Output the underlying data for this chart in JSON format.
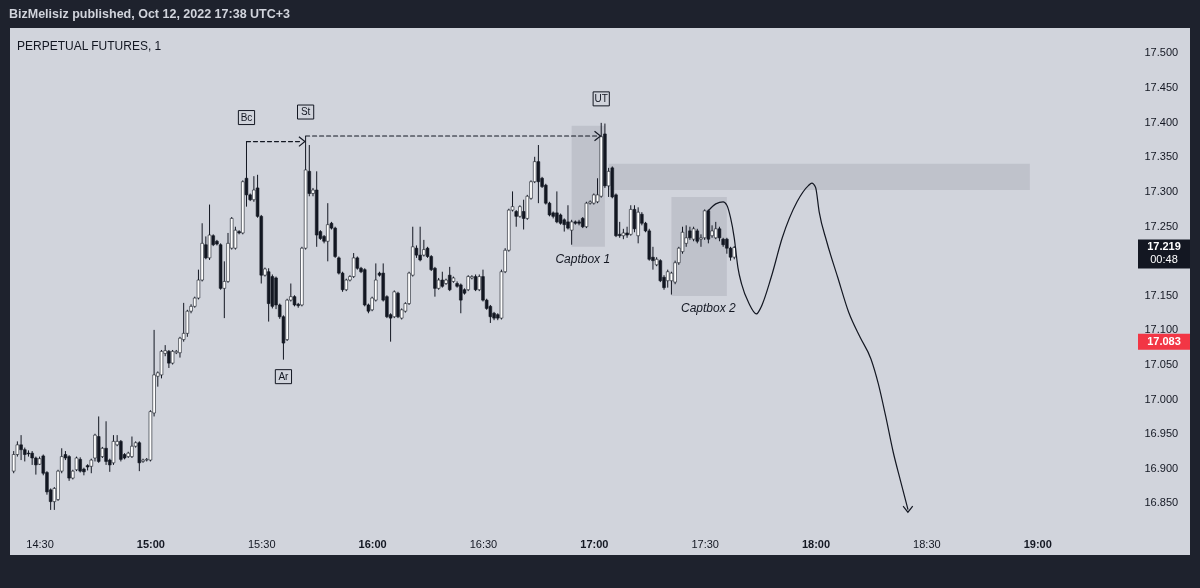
{
  "chart_data": {
    "type": "candlestick",
    "title": "PERPETUAL FUTURES, 1",
    "subtitle": "BizMelisiz published, Oct 12, 2022 17:38 UTC+3",
    "color": "#131722",
    "x": [
      "2022-10-12T14:23",
      "2022-10-12T14:24",
      "2022-10-12T14:25",
      "2022-10-12T14:26",
      "2022-10-12T14:27",
      "2022-10-12T14:28",
      "2022-10-12T14:29",
      "2022-10-12T14:30",
      "2022-10-12T14:31",
      "2022-10-12T14:32",
      "2022-10-12T14:33",
      "2022-10-12T14:34",
      "2022-10-12T14:35",
      "2022-10-12T14:36",
      "2022-10-12T14:37",
      "2022-10-12T14:38",
      "2022-10-12T14:39",
      "2022-10-12T14:40",
      "2022-10-12T14:41",
      "2022-10-12T14:42",
      "2022-10-12T14:43",
      "2022-10-12T14:44",
      "2022-10-12T14:45",
      "2022-10-12T14:46",
      "2022-10-12T14:47",
      "2022-10-12T14:48",
      "2022-10-12T14:49",
      "2022-10-12T14:50",
      "2022-10-12T14:51",
      "2022-10-12T14:52",
      "2022-10-12T14:53",
      "2022-10-12T14:54",
      "2022-10-12T14:55",
      "2022-10-12T14:56",
      "2022-10-12T14:57",
      "2022-10-12T14:58",
      "2022-10-12T14:59",
      "2022-10-12T15:00",
      "2022-10-12T15:01",
      "2022-10-12T15:02",
      "2022-10-12T15:03",
      "2022-10-12T15:04",
      "2022-10-12T15:05",
      "2022-10-12T15:06",
      "2022-10-12T15:07",
      "2022-10-12T15:08",
      "2022-10-12T15:09",
      "2022-10-12T15:10",
      "2022-10-12T15:11",
      "2022-10-12T15:12",
      "2022-10-12T15:13",
      "2022-10-12T15:14",
      "2022-10-12T15:15",
      "2022-10-12T15:16",
      "2022-10-12T15:17",
      "2022-10-12T15:18",
      "2022-10-12T15:19",
      "2022-10-12T15:20",
      "2022-10-12T15:21",
      "2022-10-12T15:22",
      "2022-10-12T15:23",
      "2022-10-12T15:24",
      "2022-10-12T15:25",
      "2022-10-12T15:26",
      "2022-10-12T15:27",
      "2022-10-12T15:28",
      "2022-10-12T15:29",
      "2022-10-12T15:30",
      "2022-10-12T15:31",
      "2022-10-12T15:32",
      "2022-10-12T15:33",
      "2022-10-12T15:34",
      "2022-10-12T15:35",
      "2022-10-12T15:36",
      "2022-10-12T15:37",
      "2022-10-12T15:38",
      "2022-10-12T15:39",
      "2022-10-12T15:40",
      "2022-10-12T15:41",
      "2022-10-12T15:42",
      "2022-10-12T15:43",
      "2022-10-12T15:44",
      "2022-10-12T15:45",
      "2022-10-12T15:46",
      "2022-10-12T15:47",
      "2022-10-12T15:48",
      "2022-10-12T15:49",
      "2022-10-12T15:50",
      "2022-10-12T15:51",
      "2022-10-12T15:52",
      "2022-10-12T15:53",
      "2022-10-12T15:54",
      "2022-10-12T15:55",
      "2022-10-12T15:56",
      "2022-10-12T15:57",
      "2022-10-12T15:58",
      "2022-10-12T15:59",
      "2022-10-12T16:00",
      "2022-10-12T16:01",
      "2022-10-12T16:02",
      "2022-10-12T16:03",
      "2022-10-12T16:04",
      "2022-10-12T16:05",
      "2022-10-12T16:06",
      "2022-10-12T16:07",
      "2022-10-12T16:08",
      "2022-10-12T16:09",
      "2022-10-12T16:10",
      "2022-10-12T16:11",
      "2022-10-12T16:12",
      "2022-10-12T16:13",
      "2022-10-12T16:14",
      "2022-10-12T16:15",
      "2022-10-12T16:16",
      "2022-10-12T16:17",
      "2022-10-12T16:18",
      "2022-10-12T16:19",
      "2022-10-12T16:20",
      "2022-10-12T16:21",
      "2022-10-12T16:22",
      "2022-10-12T16:23",
      "2022-10-12T16:24",
      "2022-10-12T16:25",
      "2022-10-12T16:26",
      "2022-10-12T16:27",
      "2022-10-12T16:28",
      "2022-10-12T16:29",
      "2022-10-12T16:30",
      "2022-10-12T16:31",
      "2022-10-12T16:32",
      "2022-10-12T16:33",
      "2022-10-12T16:34",
      "2022-10-12T16:35",
      "2022-10-12T16:36",
      "2022-10-12T16:37",
      "2022-10-12T16:38",
      "2022-10-12T16:39",
      "2022-10-12T16:40",
      "2022-10-12T16:41",
      "2022-10-12T16:42",
      "2022-10-12T16:43",
      "2022-10-12T16:44",
      "2022-10-12T16:45",
      "2022-10-12T16:46",
      "2022-10-12T16:47",
      "2022-10-12T16:48",
      "2022-10-12T16:49",
      "2022-10-12T16:50",
      "2022-10-12T16:51",
      "2022-10-12T16:52",
      "2022-10-12T16:53",
      "2022-10-12T16:54",
      "2022-10-12T16:55",
      "2022-10-12T16:56",
      "2022-10-12T16:57",
      "2022-10-12T16:58",
      "2022-10-12T16:59",
      "2022-10-12T17:00",
      "2022-10-12T17:01",
      "2022-10-12T17:02",
      "2022-10-12T17:03",
      "2022-10-12T17:04",
      "2022-10-12T17:05",
      "2022-10-12T17:06",
      "2022-10-12T17:07",
      "2022-10-12T17:08",
      "2022-10-12T17:09",
      "2022-10-12T17:10",
      "2022-10-12T17:11",
      "2022-10-12T17:12",
      "2022-10-12T17:13",
      "2022-10-12T17:14",
      "2022-10-12T17:15",
      "2022-10-12T17:16",
      "2022-10-12T17:17",
      "2022-10-12T17:18",
      "2022-10-12T17:19",
      "2022-10-12T17:20",
      "2022-10-12T17:21",
      "2022-10-12T17:22",
      "2022-10-12T17:23",
      "2022-10-12T17:24",
      "2022-10-12T17:25",
      "2022-10-12T17:26",
      "2022-10-12T17:27",
      "2022-10-12T17:28",
      "2022-10-12T17:29",
      "2022-10-12T17:30",
      "2022-10-12T17:31",
      "2022-10-12T17:32",
      "2022-10-12T17:33",
      "2022-10-12T17:34",
      "2022-10-12T17:35",
      "2022-10-12T17:36",
      "2022-10-12T17:37",
      "2022-10-12T17:38"
    ],
    "ohlc": [
      [
        16.896,
        16.925,
        16.893,
        16.92
      ],
      [
        16.92,
        16.939,
        16.917,
        16.934
      ],
      [
        16.934,
        16.948,
        16.912,
        16.927
      ],
      [
        16.927,
        16.93,
        16.91,
        16.92
      ],
      [
        16.922,
        16.926,
        16.917,
        16.921
      ],
      [
        16.922,
        16.925,
        16.905,
        16.915
      ],
      [
        16.915,
        16.917,
        16.891,
        16.905
      ],
      [
        16.906,
        16.917,
        16.905,
        16.914
      ],
      [
        16.918,
        16.92,
        16.89,
        16.893
      ],
      [
        16.894,
        16.896,
        16.862,
        16.866
      ],
      [
        16.869,
        16.871,
        16.84,
        16.852
      ],
      [
        16.852,
        16.873,
        16.84,
        16.871
      ],
      [
        16.855,
        16.898,
        16.853,
        16.896
      ],
      [
        16.896,
        16.929,
        16.893,
        16.917
      ],
      [
        16.92,
        16.925,
        16.912,
        16.915
      ],
      [
        16.917,
        16.919,
        16.882,
        16.886
      ],
      [
        16.886,
        16.898,
        16.884,
        16.896
      ],
      [
        16.898,
        16.917,
        16.896,
        16.915
      ],
      [
        16.913,
        16.916,
        16.894,
        16.896
      ],
      [
        16.899,
        16.901,
        16.89,
        16.895
      ],
      [
        16.904,
        16.906,
        16.897,
        16.902
      ],
      [
        16.903,
        16.914,
        16.893,
        16.912
      ],
      [
        16.915,
        16.95,
        16.91,
        16.948
      ],
      [
        16.946,
        16.975,
        16.908,
        16.91
      ],
      [
        16.917,
        16.931,
        16.915,
        16.929
      ],
      [
        16.929,
        16.968,
        16.905,
        16.91
      ],
      [
        16.912,
        16.914,
        16.895,
        16.905
      ],
      [
        16.908,
        16.948,
        16.905,
        16.939
      ],
      [
        16.934,
        16.948,
        16.932,
        16.939
      ],
      [
        16.939,
        16.941,
        16.91,
        16.913
      ],
      [
        16.92,
        16.922,
        16.913,
        16.915
      ],
      [
        16.917,
        16.924,
        16.915,
        16.922
      ],
      [
        16.917,
        16.946,
        16.915,
        16.932
      ],
      [
        16.932,
        16.939,
        16.93,
        16.937
      ],
      [
        16.937,
        16.939,
        16.896,
        16.908
      ],
      [
        16.91,
        16.914,
        16.908,
        16.912
      ],
      [
        16.912,
        16.915,
        16.91,
        16.913
      ],
      [
        16.912,
        16.984,
        16.91,
        16.982
      ],
      [
        16.98,
        17.1,
        16.975,
        17.035
      ],
      [
        17.033,
        17.04,
        17.018,
        17.038
      ],
      [
        17.035,
        17.071,
        17.03,
        17.069
      ],
      [
        17.066,
        17.078,
        17.062,
        17.07
      ],
      [
        17.069,
        17.071,
        17.045,
        17.052
      ],
      [
        17.052,
        17.071,
        17.05,
        17.069
      ],
      [
        17.067,
        17.071,
        17.065,
        17.069
      ],
      [
        17.067,
        17.09,
        17.06,
        17.088
      ],
      [
        17.086,
        17.139,
        17.083,
        17.095
      ],
      [
        17.095,
        17.129,
        17.09,
        17.127
      ],
      [
        17.127,
        17.137,
        17.124,
        17.134
      ],
      [
        17.134,
        17.148,
        17.132,
        17.146
      ],
      [
        17.146,
        17.187,
        17.144,
        17.172
      ],
      [
        17.172,
        17.254,
        17.17,
        17.225
      ],
      [
        17.223,
        17.235,
        17.202,
        17.204
      ],
      [
        17.204,
        17.281,
        17.201,
        17.237
      ],
      [
        17.236,
        17.238,
        17.221,
        17.223
      ],
      [
        17.228,
        17.23,
        17.222,
        17.224
      ],
      [
        17.223,
        17.225,
        17.158,
        17.16
      ],
      [
        17.16,
        17.199,
        17.117,
        17.17
      ],
      [
        17.17,
        17.24,
        17.168,
        17.225
      ],
      [
        17.218,
        17.263,
        17.216,
        17.261
      ],
      [
        17.218,
        17.249,
        17.216,
        17.244
      ],
      [
        17.242,
        17.244,
        17.238,
        17.24
      ],
      [
        17.24,
        17.316,
        17.238,
        17.314
      ],
      [
        17.319,
        17.372,
        17.278,
        17.295
      ],
      [
        17.295,
        17.297,
        17.286,
        17.288
      ],
      [
        17.288,
        17.322,
        17.285,
        17.302
      ],
      [
        17.305,
        17.324,
        17.262,
        17.264
      ],
      [
        17.264,
        17.266,
        17.167,
        17.179
      ],
      [
        17.179,
        17.19,
        17.177,
        17.188
      ],
      [
        17.184,
        17.189,
        17.112,
        17.138
      ],
      [
        17.177,
        17.18,
        17.131,
        17.134
      ],
      [
        17.175,
        17.177,
        17.13,
        17.136
      ],
      [
        17.136,
        17.138,
        17.116,
        17.119
      ],
      [
        17.119,
        17.121,
        17.057,
        17.081
      ],
      [
        17.086,
        17.145,
        17.084,
        17.143
      ],
      [
        17.143,
        17.167,
        17.141,
        17.148
      ],
      [
        17.148,
        17.15,
        17.134,
        17.136
      ],
      [
        17.137,
        17.139,
        17.132,
        17.135
      ],
      [
        17.136,
        17.22,
        17.134,
        17.218
      ],
      [
        17.218,
        17.38,
        17.216,
        17.331
      ],
      [
        17.329,
        17.367,
        17.293,
        17.297
      ],
      [
        17.297,
        17.305,
        17.293,
        17.302
      ],
      [
        17.302,
        17.329,
        17.22,
        17.237
      ],
      [
        17.242,
        17.244,
        17.23,
        17.232
      ],
      [
        17.235,
        17.237,
        17.225,
        17.228
      ],
      [
        17.228,
        17.283,
        17.199,
        17.252
      ],
      [
        17.254,
        17.256,
        17.245,
        17.247
      ],
      [
        17.247,
        17.249,
        17.204,
        17.206
      ],
      [
        17.204,
        17.206,
        17.18,
        17.182
      ],
      [
        17.182,
        17.184,
        17.155,
        17.158
      ],
      [
        17.158,
        17.174,
        17.156,
        17.172
      ],
      [
        17.172,
        17.179,
        17.17,
        17.177
      ],
      [
        17.177,
        17.211,
        17.175,
        17.204
      ],
      [
        17.204,
        17.206,
        17.187,
        17.189
      ],
      [
        17.189,
        17.191,
        17.182,
        17.184
      ],
      [
        17.187,
        17.189,
        17.134,
        17.136
      ],
      [
        17.136,
        17.138,
        17.124,
        17.127
      ],
      [
        17.129,
        17.148,
        17.127,
        17.146
      ],
      [
        17.143,
        17.196,
        17.141,
        17.172
      ],
      [
        17.182,
        17.184,
        17.177,
        17.179
      ],
      [
        17.182,
        17.196,
        17.141,
        17.143
      ],
      [
        17.148,
        17.15,
        17.117,
        17.119
      ],
      [
        17.122,
        17.124,
        17.083,
        17.117
      ],
      [
        17.119,
        17.157,
        17.117,
        17.155
      ],
      [
        17.153,
        17.155,
        17.117,
        17.119
      ],
      [
        17.117,
        17.131,
        17.115,
        17.129
      ],
      [
        17.127,
        17.14,
        17.125,
        17.138
      ],
      [
        17.138,
        17.184,
        17.136,
        17.182
      ],
      [
        17.179,
        17.249,
        17.177,
        17.22
      ],
      [
        17.218,
        17.222,
        17.204,
        17.208
      ],
      [
        17.208,
        17.249,
        17.199,
        17.201
      ],
      [
        17.208,
        17.23,
        17.206,
        17.216
      ],
      [
        17.218,
        17.22,
        17.204,
        17.206
      ],
      [
        17.206,
        17.208,
        17.185,
        17.187
      ],
      [
        17.189,
        17.191,
        17.148,
        17.16
      ],
      [
        17.16,
        17.175,
        17.158,
        17.172
      ],
      [
        17.172,
        17.184,
        17.161,
        17.163
      ],
      [
        17.167,
        17.174,
        17.165,
        17.172
      ],
      [
        17.179,
        17.191,
        17.156,
        17.158
      ],
      [
        17.17,
        17.177,
        17.168,
        17.175
      ],
      [
        17.167,
        17.17,
        17.161,
        17.163
      ],
      [
        17.165,
        17.167,
        17.124,
        17.143
      ],
      [
        17.158,
        17.16,
        17.151,
        17.153
      ],
      [
        17.158,
        17.179,
        17.156,
        17.177
      ],
      [
        17.175,
        17.179,
        17.173,
        17.177
      ],
      [
        17.177,
        17.18,
        17.156,
        17.158
      ],
      [
        17.158,
        17.18,
        17.156,
        17.177
      ],
      [
        17.177,
        17.187,
        17.141,
        17.143
      ],
      [
        17.143,
        17.145,
        17.129,
        17.131
      ],
      [
        17.134,
        17.136,
        17.11,
        17.119
      ],
      [
        17.124,
        17.126,
        17.114,
        17.117
      ],
      [
        17.122,
        17.124,
        17.114,
        17.117
      ],
      [
        17.117,
        17.187,
        17.115,
        17.184
      ],
      [
        17.184,
        17.218,
        17.182,
        17.215
      ],
      [
        17.215,
        17.275,
        17.213,
        17.273
      ],
      [
        17.273,
        17.3,
        17.271,
        17.278
      ],
      [
        17.271,
        17.273,
        17.249,
        17.264
      ],
      [
        17.264,
        17.28,
        17.262,
        17.278
      ],
      [
        17.271,
        17.288,
        17.245,
        17.261
      ],
      [
        17.261,
        17.295,
        17.259,
        17.293
      ],
      [
        17.29,
        17.316,
        17.288,
        17.314
      ],
      [
        17.314,
        17.35,
        17.312,
        17.343
      ],
      [
        17.343,
        17.367,
        17.283,
        17.314
      ],
      [
        17.319,
        17.321,
        17.305,
        17.307
      ],
      [
        17.309,
        17.311,
        17.281,
        17.283
      ],
      [
        17.283,
        17.285,
        17.264,
        17.266
      ],
      [
        17.269,
        17.271,
        17.261,
        17.264
      ],
      [
        17.269,
        17.3,
        17.254,
        17.256
      ],
      [
        17.266,
        17.268,
        17.252,
        17.254
      ],
      [
        17.259,
        17.261,
        17.242,
        17.252
      ],
      [
        17.256,
        17.28,
        17.245,
        17.247
      ],
      [
        17.244,
        17.259,
        17.223,
        17.256
      ],
      [
        17.256,
        17.258,
        17.252,
        17.254
      ],
      [
        17.256,
        17.259,
        17.251,
        17.254
      ],
      [
        17.261,
        17.263,
        17.247,
        17.249
      ],
      [
        17.249,
        17.285,
        17.247,
        17.283
      ],
      [
        17.283,
        17.287,
        17.281,
        17.285
      ],
      [
        17.283,
        17.297,
        17.281,
        17.295
      ],
      [
        17.285,
        17.319,
        17.283,
        17.295
      ],
      [
        17.293,
        17.399,
        17.291,
        17.379
      ],
      [
        17.383,
        17.398,
        17.305,
        17.308
      ],
      [
        17.308,
        17.334,
        17.292,
        17.329
      ],
      [
        17.334,
        17.336,
        17.29,
        17.292
      ],
      [
        17.295,
        17.297,
        17.234,
        17.236
      ],
      [
        17.238,
        17.256,
        17.233,
        17.236
      ],
      [
        17.236,
        17.246,
        17.231,
        17.24
      ],
      [
        17.24,
        17.249,
        17.233,
        17.237
      ],
      [
        17.238,
        17.28,
        17.236,
        17.274
      ],
      [
        17.274,
        17.28,
        17.241,
        17.246
      ],
      [
        17.236,
        17.277,
        17.225,
        17.27
      ],
      [
        17.267,
        17.27,
        17.251,
        17.254
      ],
      [
        17.254,
        17.256,
        17.241,
        17.243
      ],
      [
        17.243,
        17.246,
        17.2,
        17.202
      ],
      [
        17.205,
        17.22,
        17.187,
        17.2
      ],
      [
        17.194,
        17.205,
        17.192,
        17.202
      ],
      [
        17.2,
        17.202,
        17.169,
        17.171
      ],
      [
        17.176,
        17.179,
        17.158,
        17.161
      ],
      [
        17.171,
        17.187,
        17.161,
        17.184
      ],
      [
        17.171,
        17.184,
        17.151,
        17.182
      ],
      [
        17.169,
        17.2,
        17.166,
        17.197
      ],
      [
        17.197,
        17.22,
        17.194,
        17.218
      ],
      [
        17.213,
        17.249,
        17.21,
        17.241
      ],
      [
        17.225,
        17.251,
        17.22,
        17.233
      ],
      [
        17.243,
        17.249,
        17.23,
        17.233
      ],
      [
        17.231,
        17.249,
        17.228,
        17.246
      ],
      [
        17.243,
        17.246,
        17.225,
        17.228
      ],
      [
        17.231,
        17.238,
        17.22,
        17.233
      ],
      [
        17.233,
        17.274,
        17.23,
        17.272
      ],
      [
        17.272,
        17.274,
        17.225,
        17.231
      ],
      [
        17.236,
        17.251,
        17.233,
        17.243
      ],
      [
        17.233,
        17.256,
        17.231,
        17.246
      ],
      [
        17.246,
        17.249,
        17.228,
        17.233
      ],
      [
        17.231,
        17.233,
        17.22,
        17.223
      ],
      [
        17.231,
        17.233,
        17.21,
        17.218
      ],
      [
        17.218,
        17.22,
        17.2,
        17.205
      ],
      [
        17.205,
        17.221,
        17.202,
        17.219
      ]
    ],
    "xlim": [
      "2022-10-12T14:22",
      "2022-10-12T19:27"
    ],
    "xticks": [
      {
        "value": "2022-10-12T14:30",
        "label": "14:30"
      },
      {
        "value": "2022-10-12T15:00",
        "label": "15:00"
      },
      {
        "value": "2022-10-12T15:30",
        "label": "15:30"
      },
      {
        "value": "2022-10-12T16:00",
        "label": "16:00"
      },
      {
        "value": "2022-10-12T16:30",
        "label": "16:30"
      },
      {
        "value": "2022-10-12T17:00",
        "label": "17:00"
      },
      {
        "value": "2022-10-12T17:30",
        "label": "17:30"
      },
      {
        "value": "2022-10-12T18:00",
        "label": "18:00"
      },
      {
        "value": "2022-10-12T18:30",
        "label": "18:30"
      },
      {
        "value": "2022-10-12T19:00",
        "label": "19:00"
      }
    ],
    "ylim": [
      16.811,
      17.536
    ],
    "yticks": [
      {
        "value": 17.5,
        "label": "17.500"
      },
      {
        "value": 17.45,
        "label": "17.450"
      },
      {
        "value": 17.4,
        "label": "17.400"
      },
      {
        "value": 17.35,
        "label": "17.350"
      },
      {
        "value": 17.3,
        "label": "17.300"
      },
      {
        "value": 17.25,
        "label": "17.250"
      },
      {
        "value": 17.15,
        "label": "17.150"
      },
      {
        "value": 17.1,
        "label": "17.100"
      },
      {
        "value": 17.05,
        "label": "17.050"
      },
      {
        "value": 17.0,
        "label": "17.000"
      },
      {
        "value": 16.95,
        "label": "16.950"
      },
      {
        "value": 16.9,
        "label": "16.900"
      },
      {
        "value": 16.85,
        "label": "16.850"
      }
    ],
    "series": [
      {
        "type": "line",
        "color": "#bfc2cb",
        "x": [
          "2022-10-12T16:54",
          "2022-10-12T17:03"
        ],
        "values": [
          null,
          null
        ],
        "lower": [
          17.22,
          17.22
        ],
        "upper": [
          17.395,
          17.395
        ]
      },
      {
        "type": "line",
        "color": "#bfc2cb",
        "x": [
          "2022-10-12T17:21",
          "2022-10-12T17:36"
        ],
        "values": [
          null,
          null
        ],
        "lower": [
          17.149,
          17.149
        ],
        "upper": [
          17.292,
          17.292
        ]
      },
      {
        "type": "line",
        "color": "#bfc2cb",
        "x": [
          "2022-10-12T17:04",
          "2022-10-12T18:58"
        ],
        "values": [
          null,
          null
        ],
        "lower": [
          17.302,
          17.302
        ],
        "upper": [
          17.34,
          17.34
        ]
      },
      {
        "type": "line",
        "line_style": "dashed",
        "color": "#131722",
        "x": [
          "2022-10-12T15:26",
          "2022-10-12T15:41"
        ],
        "values": [
          17.372,
          17.372
        ]
      },
      {
        "type": "line",
        "line_style": "dashed",
        "color": "#131722",
        "x": [
          "2022-10-12T15:42",
          "2022-10-12T17:01"
        ],
        "values": [
          17.38,
          17.38
        ]
      },
      {
        "type": "line",
        "line_style": "solid",
        "color": "#131722",
        "x": [
          "2022-10-12T17:31",
          "2022-10-12T17:33",
          "2022-10-12T17:35",
          "2022-10-12T17:36",
          "2022-10-12T17:37",
          "2022-10-12T17:38",
          "2022-10-12T17:39",
          "2022-10-12T17:40",
          "2022-10-12T17:42",
          "2022-10-12T17:44",
          "2022-10-12T17:45",
          "2022-10-12T17:48",
          "2022-10-12T17:51",
          "2022-10-12T17:55",
          "2022-10-12T17:58",
          "2022-10-12T17:59",
          "2022-10-12T18:00",
          "2022-10-12T18:01",
          "2022-10-12T18:03",
          "2022-10-12T18:06",
          "2022-10-12T18:09",
          "2022-10-12T18:12",
          "2022-10-12T18:15",
          "2022-10-12T18:17",
          "2022-10-12T18:19",
          "2022-10-12T18:21",
          "2022-10-12T18:23",
          "2022-10-12T18:25"
        ],
        "values": [
          17.272,
          17.282,
          17.285,
          17.28,
          17.262,
          17.233,
          17.19,
          17.166,
          17.138,
          17.123,
          17.13,
          17.176,
          17.233,
          17.285,
          17.308,
          17.312,
          17.306,
          17.27,
          17.228,
          17.176,
          17.125,
          17.09,
          17.058,
          17.022,
          16.975,
          16.924,
          16.882,
          16.841
        ]
      }
    ],
    "annotations": [
      {
        "text": "Bc",
        "x": "2022-10-12T15:26",
        "y": 17.372
      },
      {
        "text": "St",
        "x": "2022-10-12T15:42",
        "y": 17.38
      },
      {
        "text": "UT",
        "x": "2022-10-12T17:02",
        "y": 17.399
      },
      {
        "text": "Ar",
        "x": "2022-10-12T15:36",
        "y": 17.057
      },
      {
        "text": "Captbox 1",
        "x": "2022-10-12T16:57",
        "y": 17.22
      },
      {
        "text": "Captbox 2",
        "x": "2022-10-12T17:31",
        "y": 17.149
      },
      "17.219",
      "00:48",
      "17.083"
    ]
  }
}
